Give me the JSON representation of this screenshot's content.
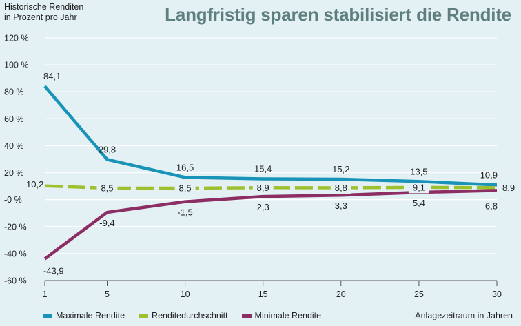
{
  "colors": {
    "background": "#e3f0f4",
    "title": "#5f7f7f",
    "max": "#1994b8",
    "avg": "#9dc12e",
    "min": "#8c2d63",
    "grid": "#ffffff",
    "axis": "#555555"
  },
  "chart_data": {
    "type": "line",
    "title": "Langfristig sparen stabilisiert die Rendite",
    "ylabel": "Historische Renditen\nin Prozent pro Jahr",
    "xlabel": "Anlagezeitraum in Jahren",
    "x": [
      1,
      5,
      10,
      15,
      20,
      25,
      30
    ],
    "x_tick_labels": [
      "1",
      "5",
      "10",
      "15",
      "20",
      "25",
      "30"
    ],
    "ylim": [
      -60,
      120
    ],
    "y_ticks": [
      120,
      100,
      80,
      60,
      40,
      20,
      0,
      -20,
      -40,
      -60
    ],
    "y_tick_labels": [
      "120 %",
      "100 %",
      "80 %",
      "60 %",
      "40 %",
      "20 %",
      "-0 %",
      "-20 %",
      "-40 %",
      "-60 %"
    ],
    "grid": true,
    "legend_position": "bottom-left",
    "series": [
      {
        "name": "Maximale Rendite",
        "color": "#1994b8",
        "style": "solid",
        "values": [
          84.1,
          29.8,
          16.5,
          15.4,
          15.2,
          13.5,
          10.9
        ],
        "labels": [
          "84,1",
          "29,8",
          "16,5",
          "15,4",
          "15,2",
          "13,5",
          "10,9"
        ]
      },
      {
        "name": "Renditedurchschnitt",
        "color": "#9dc12e",
        "style": "dashed",
        "values": [
          10.2,
          8.5,
          8.5,
          8.9,
          8.8,
          9.1,
          8.9
        ],
        "labels": [
          "10,2",
          "8,5",
          "8,5",
          "8,9",
          "8,8",
          "9,1",
          "8,9"
        ]
      },
      {
        "name": "Minimale Rendite",
        "color": "#8c2d63",
        "style": "solid",
        "values": [
          -43.9,
          -9.4,
          -1.5,
          2.3,
          3.3,
          5.4,
          6.8
        ],
        "labels": [
          "-43,9",
          "-9,4",
          "-1,5",
          "2,3",
          "3,3",
          "5,4",
          "6,8"
        ]
      }
    ]
  }
}
